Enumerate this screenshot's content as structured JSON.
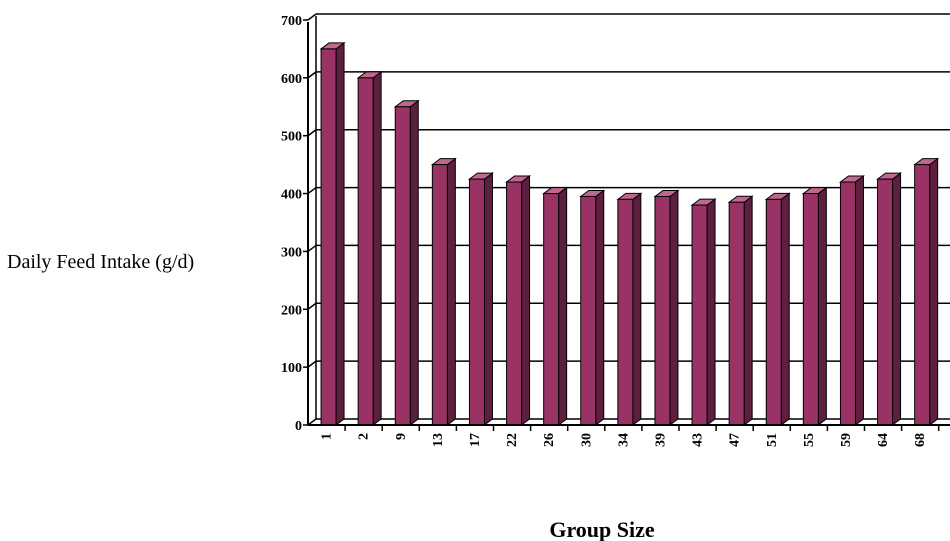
{
  "chart_data": {
    "type": "bar",
    "title": "",
    "xlabel": "Group Size",
    "ylabel": "Daily Feed Intake (g/d)",
    "categories": [
      "1",
      "2",
      "9",
      "13",
      "17",
      "22",
      "26",
      "30",
      "34",
      "39",
      "43",
      "47",
      "51",
      "55",
      "59",
      "64",
      "68"
    ],
    "values": [
      650,
      600,
      550,
      450,
      425,
      420,
      400,
      395,
      390,
      395,
      380,
      385,
      390,
      400,
      420,
      425,
      450
    ],
    "ylim": [
      0,
      700
    ],
    "yticks": [
      "0",
      "100",
      "200",
      "300",
      "400",
      "500",
      "600",
      "700"
    ],
    "grid": true,
    "legend": "none",
    "colors": {
      "bar_front": "#993366",
      "bar_side": "#5c1f3e",
      "bar_top": "#c0668f",
      "outline": "#000000"
    }
  }
}
